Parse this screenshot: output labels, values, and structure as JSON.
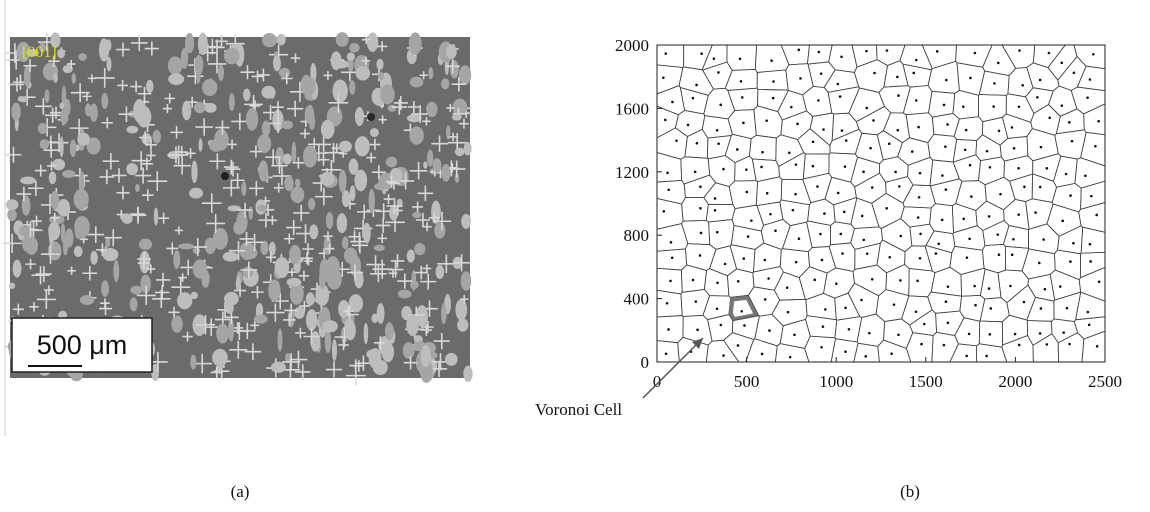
{
  "panel_a": {
    "orientation": "[001]",
    "scale_bar": "500 μm",
    "caption": "(a)"
  },
  "panel_b": {
    "xlim": [
      0,
      2500
    ],
    "ylim": [
      0,
      2000
    ],
    "xticks": [
      0,
      500,
      1000,
      1500,
      2000,
      2500
    ],
    "yticks": [
      0,
      400,
      800,
      1200,
      1600,
      2000
    ],
    "annotation": "Voronoi Cell",
    "caption": "(b)"
  }
}
